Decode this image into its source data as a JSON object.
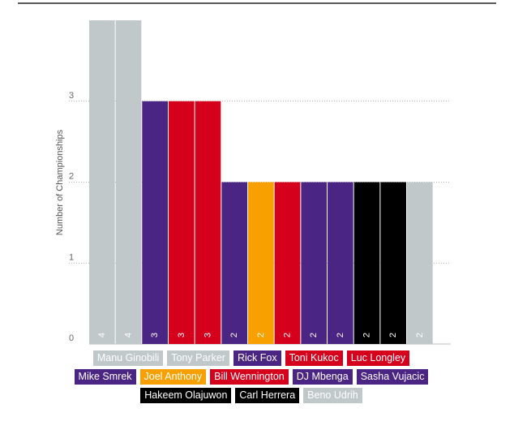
{
  "chart_data": {
    "type": "bar",
    "title": "",
    "xlabel": "",
    "ylabel": "Number of Championships",
    "ylim": [
      0,
      4
    ],
    "yticks": [
      0,
      1,
      2,
      3
    ],
    "grid": true,
    "legend_position": "bottom",
    "categories": [
      "Manu Ginobili",
      "Tony Parker",
      "Rick Fox",
      "Toni Kukoc",
      "Luc Longley",
      "Mike Smrek",
      "Joel Anthony",
      "Bill Wennington",
      "DJ Mbenga",
      "Sasha Vujacic",
      "Hakeem Olajuwon",
      "Carl Herrera",
      "Beno Udrih"
    ],
    "colors": [
      "#c0c8ca",
      "#c0c8ca",
      "#4b2583",
      "#d5001c",
      "#d5001c",
      "#4b2583",
      "#f8a000",
      "#d5001c",
      "#4b2583",
      "#4b2583",
      "#000000",
      "#000000",
      "#c0c8ca"
    ],
    "bar_values": [
      4,
      4,
      3,
      3,
      3,
      2,
      2,
      2,
      2,
      2,
      2,
      2,
      2
    ],
    "bar_colors": [
      "#c0c8ca",
      "#c0c8ca",
      "#4b2583",
      "#d5001c",
      "#d5001c",
      "#4b2583",
      "#f8a000",
      "#d5001c",
      "#4b2583",
      "#4b2583",
      "#000000",
      "#000000",
      "#c0c8ca"
    ]
  }
}
